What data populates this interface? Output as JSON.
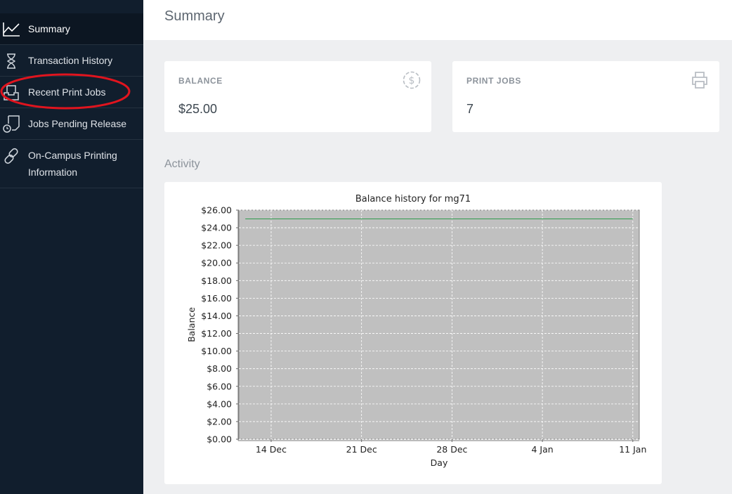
{
  "sidebar": {
    "items": [
      {
        "label": "Summary",
        "icon": "line-chart-icon",
        "active": true
      },
      {
        "label": "Transaction History",
        "icon": "hourglass-icon"
      },
      {
        "label": "Recent Print Jobs",
        "icon": "inbox-tray-icon",
        "highlighted": true
      },
      {
        "label": "Jobs Pending Release",
        "icon": "pending-document-icon"
      },
      {
        "label": "On-Campus Printing Information",
        "icon": "link-icon"
      }
    ]
  },
  "header": {
    "title": "Summary"
  },
  "cards": {
    "balance": {
      "label": "BALANCE",
      "value": "$25.00",
      "icon": "dollar-circle-icon"
    },
    "print_jobs": {
      "label": "PRINT JOBS",
      "value": "7",
      "icon": "printer-icon"
    }
  },
  "activity": {
    "title": "Activity"
  },
  "colors": {
    "sidebar_bg": "#111e2d",
    "plot_bg": "#c0c0c0",
    "series_line": "#2e9a4c",
    "highlight_ellipse": "#e0141e"
  },
  "chart_data": {
    "type": "line",
    "title": "Balance history for mg71",
    "xlabel": "Day",
    "ylabel": "Balance",
    "ylim": [
      0,
      26
    ],
    "yticks": [
      0,
      2,
      4,
      6,
      8,
      10,
      12,
      14,
      16,
      18,
      20,
      22,
      24,
      26
    ],
    "ytick_labels": [
      "$0.00",
      "$2.00",
      "$4.00",
      "$6.00",
      "$8.00",
      "$10.00",
      "$12.00",
      "$14.00",
      "$16.00",
      "$18.00",
      "$20.00",
      "$22.00",
      "$24.00",
      "$26.00"
    ],
    "xticks": [
      "14 Dec",
      "21 Dec",
      "28 Dec",
      "4 Jan",
      "11 Jan"
    ],
    "xlim_days": [
      -2.5,
      28.5
    ],
    "xtick_days": [
      0,
      7,
      14,
      21,
      28
    ],
    "grid": true,
    "legend": false,
    "series": [
      {
        "x_days": [
          -2,
          28
        ],
        "values": [
          25,
          25
        ]
      }
    ]
  }
}
